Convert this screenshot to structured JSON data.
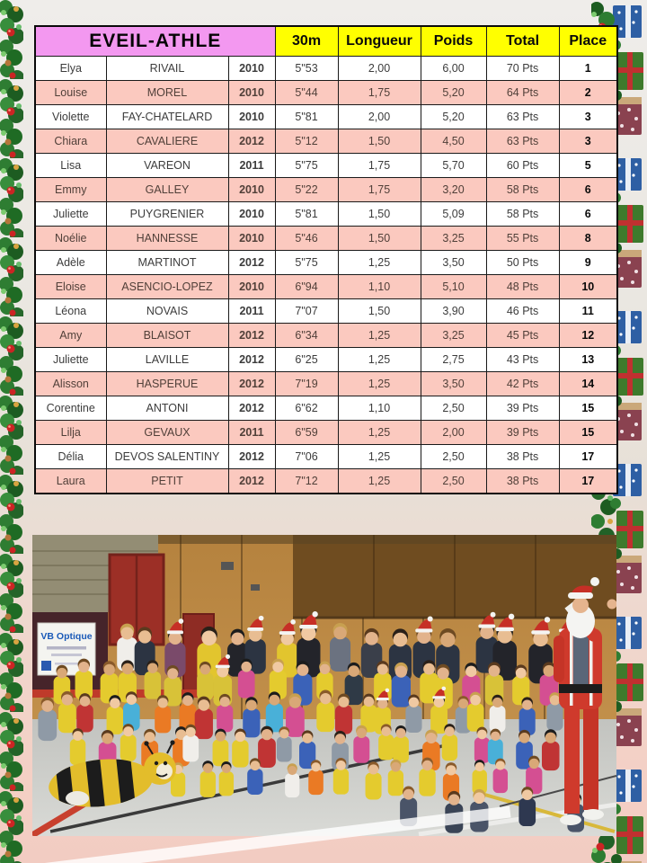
{
  "title": "EVEIL-ATHLE",
  "header": {
    "col_30m": "30m",
    "col_longueur": "Longueur",
    "col_poids": "Poids",
    "col_total": "Total",
    "col_place": "Place"
  },
  "colors": {
    "title_bg": "#f398f0",
    "header_bg": "#ffff00",
    "row_pink": "#fbc9bf",
    "row_white": "#ffffff",
    "garland_green": "#2e7d32",
    "bauble_red": "#cc2424"
  },
  "rows": [
    {
      "first": "Elya",
      "last": "RIVAIL",
      "year": "2010",
      "sprint": "5\"53",
      "longueur": "2,00",
      "poids": "6,00",
      "total": "70 Pts",
      "place": "1"
    },
    {
      "first": "Louise",
      "last": "MOREL",
      "year": "2010",
      "sprint": "5\"44",
      "longueur": "1,75",
      "poids": "5,20",
      "total": "64 Pts",
      "place": "2"
    },
    {
      "first": "Violette",
      "last": "FAY-CHATELARD",
      "year": "2010",
      "sprint": "5\"81",
      "longueur": "2,00",
      "poids": "5,20",
      "total": "63 Pts",
      "place": "3"
    },
    {
      "first": "Chiara",
      "last": "CAVALIERE",
      "year": "2012",
      "sprint": "5\"12",
      "longueur": "1,50",
      "poids": "4,50",
      "total": "63 Pts",
      "place": "3"
    },
    {
      "first": "Lisa",
      "last": "VAREON",
      "year": "2011",
      "sprint": "5\"75",
      "longueur": "1,75",
      "poids": "5,70",
      "total": "60 Pts",
      "place": "5"
    },
    {
      "first": "Emmy",
      "last": "GALLEY",
      "year": "2010",
      "sprint": "5\"22",
      "longueur": "1,75",
      "poids": "3,20",
      "total": "58 Pts",
      "place": "6"
    },
    {
      "first": "Juliette",
      "last": "PUYGRENIER",
      "year": "2010",
      "sprint": "5\"81",
      "longueur": "1,50",
      "poids": "5,09",
      "total": "58 Pts",
      "place": "6"
    },
    {
      "first": "Noélie",
      "last": "HANNESSE",
      "year": "2010",
      "sprint": "5\"46",
      "longueur": "1,50",
      "poids": "3,25",
      "total": "55 Pts",
      "place": "8"
    },
    {
      "first": "Adèle",
      "last": "MARTINOT",
      "year": "2012",
      "sprint": "5\"75",
      "longueur": "1,25",
      "poids": "3,50",
      "total": "50 Pts",
      "place": "9"
    },
    {
      "first": "Eloise",
      "last": "ASENCIO-LOPEZ",
      "year": "2010",
      "sprint": "6\"94",
      "longueur": "1,10",
      "poids": "5,10",
      "total": "48 Pts",
      "place": "10"
    },
    {
      "first": "Léona",
      "last": "NOVAIS",
      "year": "2011",
      "sprint": "7\"07",
      "longueur": "1,50",
      "poids": "3,90",
      "total": "46 Pts",
      "place": "11"
    },
    {
      "first": "Amy",
      "last": "BLAISOT",
      "year": "2012",
      "sprint": "6\"34",
      "longueur": "1,25",
      "poids": "3,25",
      "total": "45 Pts",
      "place": "12"
    },
    {
      "first": "Juliette",
      "last": "LAVILLE",
      "year": "2012",
      "sprint": "6\"25",
      "longueur": "1,25",
      "poids": "2,75",
      "total": "43 Pts",
      "place": "13"
    },
    {
      "first": "Alisson",
      "last": "HASPERUE",
      "year": "2012",
      "sprint": "7\"19",
      "longueur": "1,25",
      "poids": "3,50",
      "total": "42 Pts",
      "place": "14"
    },
    {
      "first": "Corentine",
      "last": "ANTONI",
      "year": "2012",
      "sprint": "6\"62",
      "longueur": "1,10",
      "poids": "2,50",
      "total": "39 Pts",
      "place": "15"
    },
    {
      "first": "Lilja",
      "last": "GEVAUX",
      "year": "2011",
      "sprint": "6\"59",
      "longueur": "1,25",
      "poids": "2,00",
      "total": "39 Pts",
      "place": "15"
    },
    {
      "first": "Délia",
      "last": "DEVOS SALENTINY",
      "year": "2012",
      "sprint": "7\"06",
      "longueur": "1,25",
      "poids": "2,50",
      "total": "38 Pts",
      "place": "17"
    },
    {
      "first": "Laura",
      "last": "PETIT",
      "year": "2012",
      "sprint": "7\"12",
      "longueur": "1,25",
      "poids": "2,50",
      "total": "38 Pts",
      "place": "17"
    }
  ],
  "photo": {
    "sign_text": "VB Optique"
  }
}
